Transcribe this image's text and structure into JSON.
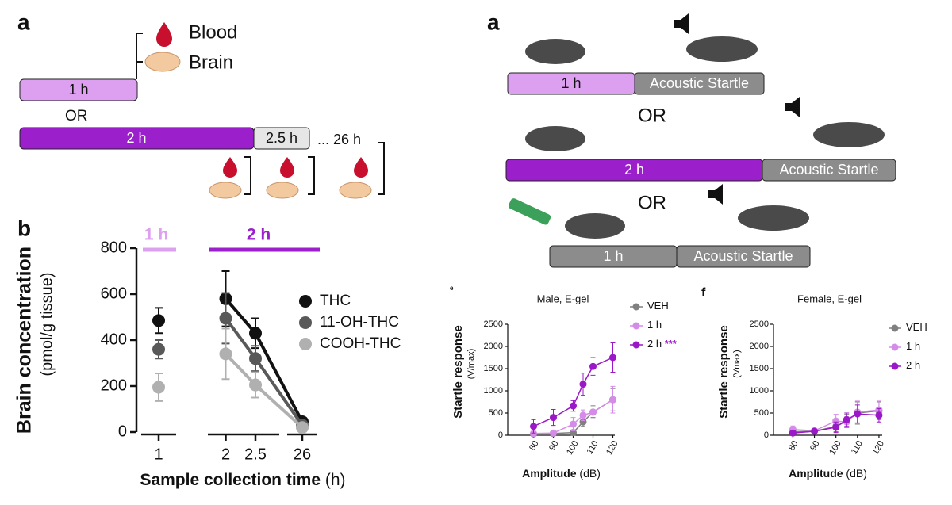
{
  "diagram_left": {
    "label": "a",
    "blood": "Blood",
    "brain": "Brain",
    "bar1": "1 h",
    "or": "OR",
    "bar2": "2 h",
    "bar3": "2.5 h",
    "bar4": "... 26 h"
  },
  "diagram_right": {
    "label": "a",
    "rows": [
      {
        "dose": "1 h",
        "test": "Acoustic Startle"
      },
      {
        "dose": "2 h",
        "test": "Acoustic Startle"
      },
      {
        "dose": "1 h",
        "test": "Acoustic Startle"
      }
    ],
    "or1": "OR",
    "or2": "OR"
  },
  "chart_data": [
    {
      "type": "line",
      "panel": "b",
      "ylabel": "Brain concentration",
      "ylabel_sub": "(pmol/g tissue)",
      "xlabel": "Sample collection time",
      "xlabel_unit": "(h)",
      "header": [
        {
          "label": "1 h",
          "color": "#dda0f0"
        },
        {
          "label": "2 h",
          "color": "#9b1fcb"
        }
      ],
      "x": [
        1,
        2,
        2.5,
        26
      ],
      "xlim": [
        [
          0.7,
          1.3
        ],
        [
          1.7,
          2.9
        ],
        [
          25.5,
          26.5
        ]
      ],
      "xticks": [
        1,
        2,
        2.5,
        26
      ],
      "ylim": [
        0,
        800
      ],
      "yticks": [
        0,
        200,
        400,
        600,
        800
      ],
      "series": [
        {
          "name": "THC",
          "color": "#111111",
          "values": [
            485,
            580,
            430,
            45
          ],
          "errors": [
            55,
            120,
            65,
            10
          ]
        },
        {
          "name": "11-OH-THC",
          "color": "#595959",
          "values": [
            360,
            495,
            320,
            30
          ],
          "errors": [
            40,
            110,
            55,
            8
          ]
        },
        {
          "name": "COOH-THC",
          "color": "#b0b0b0",
          "values": [
            195,
            340,
            205,
            20
          ],
          "errors": [
            60,
            110,
            55,
            8
          ]
        }
      ]
    },
    {
      "type": "line",
      "panel": "e",
      "title": "Male, E-gel",
      "ylabel": "Startle response",
      "ylabel_sub": "(V/max)",
      "xlabel": "Amplitude",
      "xlabel_unit": "(dB)",
      "x": [
        80,
        90,
        100,
        105,
        110,
        120
      ],
      "xlim": [
        67,
        121
      ],
      "xticks": [
        80,
        90,
        100,
        110,
        120
      ],
      "ylim": [
        0,
        2500
      ],
      "yticks": [
        0,
        500,
        1000,
        1500,
        2000,
        2500
      ],
      "series": [
        {
          "name": "VEH",
          "color": "#808080",
          "values": [
            30,
            40,
            60,
            300,
            520,
            800
          ],
          "errors": [
            40,
            40,
            60,
            100,
            120,
            250
          ]
        },
        {
          "name": "1 h",
          "color": "#d58be8",
          "values": [
            40,
            50,
            250,
            450,
            520,
            800
          ],
          "errors": [
            50,
            40,
            150,
            120,
            150,
            300
          ]
        },
        {
          "name": "2 h",
          "color": "#9b18c8",
          "values": [
            200,
            400,
            660,
            1150,
            1550,
            1750
          ],
          "errors": [
            150,
            180,
            120,
            250,
            200,
            330
          ],
          "annotation": "***"
        }
      ]
    },
    {
      "type": "line",
      "panel": "f",
      "title": "Female, E-gel",
      "ylabel": "Startle response",
      "ylabel_sub": "(Vmax)",
      "xlabel": "Amplitude",
      "xlabel_unit": "(dB)",
      "x": [
        80,
        90,
        100,
        105,
        110,
        120
      ],
      "xlim": [
        71,
        121.5
      ],
      "xticks": [
        80,
        90,
        100,
        110,
        120
      ],
      "ylim": [
        0,
        2500
      ],
      "yticks": [
        0,
        500,
        1000,
        1500,
        2000,
        2500
      ],
      "series": [
        {
          "name": "VEH",
          "color": "#808080",
          "values": [
            80,
            90,
            200,
            320,
            500,
            550
          ],
          "errors": [
            60,
            40,
            120,
            150,
            250,
            200
          ]
        },
        {
          "name": "1 h",
          "color": "#d58be8",
          "values": [
            130,
            100,
            320,
            300,
            520,
            570
          ],
          "errors": [
            80,
            40,
            150,
            120,
            250,
            200
          ]
        },
        {
          "name": "2 h",
          "color": "#9b18c8",
          "values": [
            50,
            90,
            180,
            350,
            480,
            450
          ],
          "errors": [
            60,
            40,
            120,
            150,
            200,
            150
          ]
        }
      ]
    }
  ]
}
